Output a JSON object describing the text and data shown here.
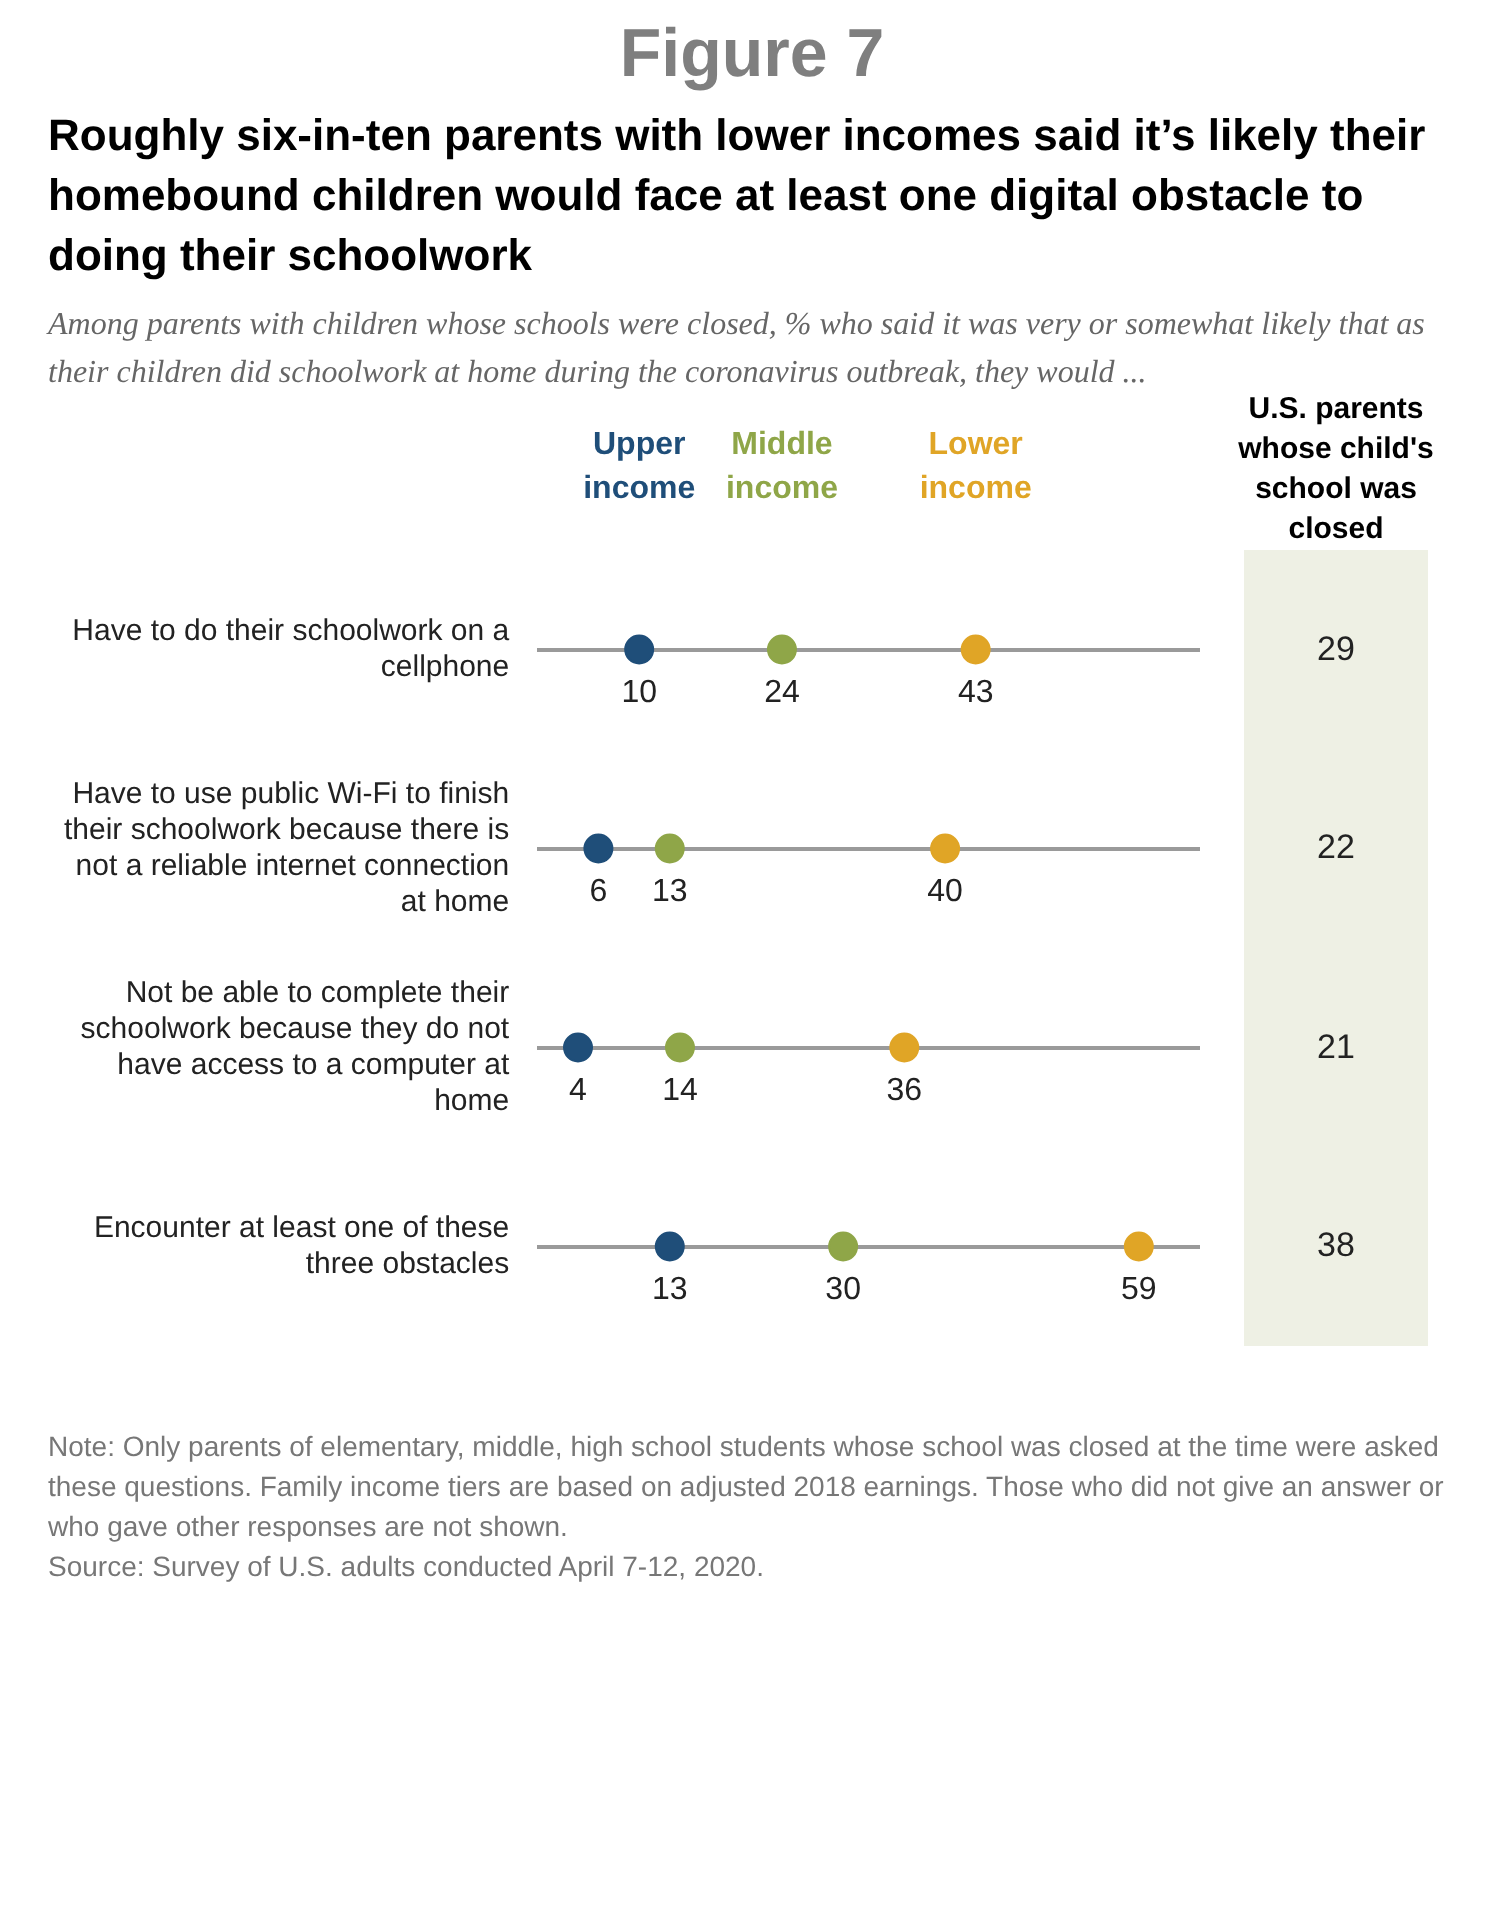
{
  "chart_data": [
    {
      "type": "scatter",
      "orientation": "horizontal",
      "title": "Roughly six-in-ten parents with lower incomes said it’s likely their homebound children would face at least one digital obstacle to doing their schoolwork",
      "subtitle": "Among parents with children whose schools were closed, % who said it was very or somewhat likely that as their children did schoolwork at home during the coronavirus outbreak, they would ...",
      "categories": [
        "Have to do their schoolwork on a cellphone",
        "Have to use public Wi-Fi to finish their schoolwork because there is not a reliable internet connection at home",
        "Not be able to complete their schoolwork because they do not have access to a computer at home",
        "Encounter at least one of these three obstacles"
      ],
      "series": [
        {
          "name": "Upper income",
          "color": "#1f4e79",
          "values": [
            10,
            6,
            4,
            13
          ]
        },
        {
          "name": "Middle income",
          "color": "#8fa648",
          "values": [
            24,
            13,
            14,
            30
          ]
        },
        {
          "name": "Lower income",
          "color": "#e0a526",
          "values": [
            43,
            40,
            36,
            59
          ]
        }
      ],
      "xlim": [
        0,
        65
      ],
      "tick_labels": "y",
      "grid": "y",
      "legend": "top",
      "marker": "circle",
      "data_labels": true,
      "annotations": [
        "Figure 7",
        "Note: Only parents of elementary, middle, high school students whose school was closed at the time were asked these questions. Family income tiers are based on adjusted 2018 earnings. Those who did not give an answer or who gave other responses are not shown.",
        "Source: Survey of U.S. adults conducted April 7-12, 2020."
      ]
    },
    {
      "type": "other",
      "title": "U.S. parents whose child's school was closed",
      "values": [
        29,
        22,
        21,
        38
      ],
      "data_labels": true
    }
  ]
}
